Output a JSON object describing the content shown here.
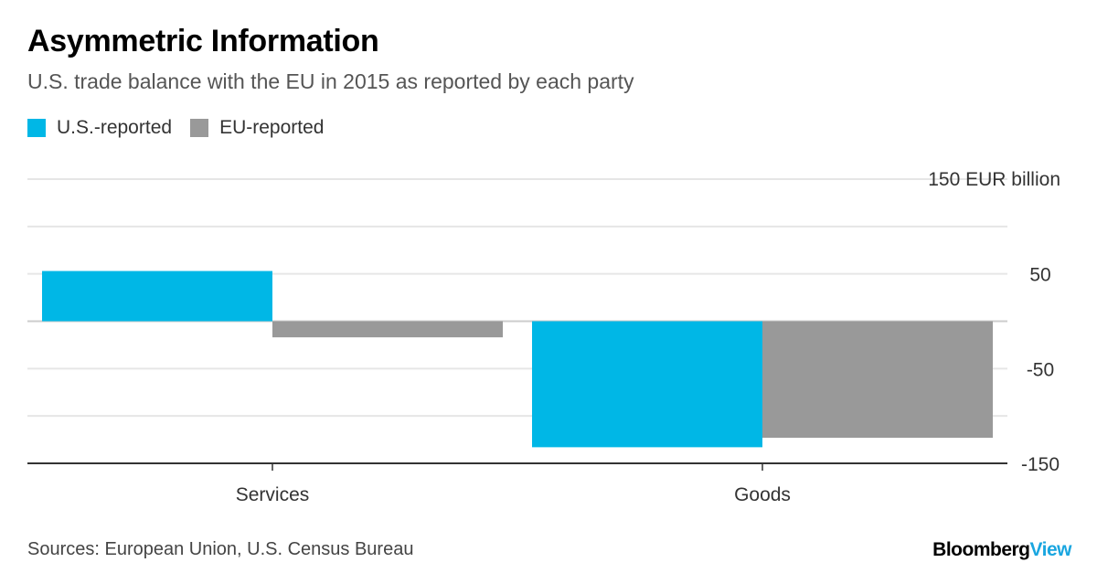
{
  "header": {
    "title": "Asymmetric Information",
    "subtitle": "U.S. trade balance with the EU in 2015 as reported by each party"
  },
  "footer": {
    "source": "Sources: European Union, U.S. Census Bureau",
    "brand_main": "Bloomberg",
    "brand_accent": "View"
  },
  "colors": {
    "us": "#00b7e6",
    "eu": "#999999",
    "grid": "#e6e6e6",
    "axis": "#333333",
    "zero": "#cccccc"
  },
  "chart_data": {
    "type": "bar",
    "categories": [
      "Services",
      "Goods"
    ],
    "series": [
      {
        "name": "U.S.-reported",
        "values": [
          53,
          -133
        ]
      },
      {
        "name": "EU-reported",
        "values": [
          -17,
          -123
        ]
      }
    ],
    "ylim": [
      -150,
      150
    ],
    "yticks": [
      150,
      100,
      50,
      0,
      -50,
      -100,
      -150
    ],
    "ytick_labels": [
      "150 EUR billion",
      "",
      "50",
      "",
      "-50",
      "",
      "-150"
    ],
    "unit": "EUR billion",
    "grid": true,
    "legend": "top-left"
  }
}
